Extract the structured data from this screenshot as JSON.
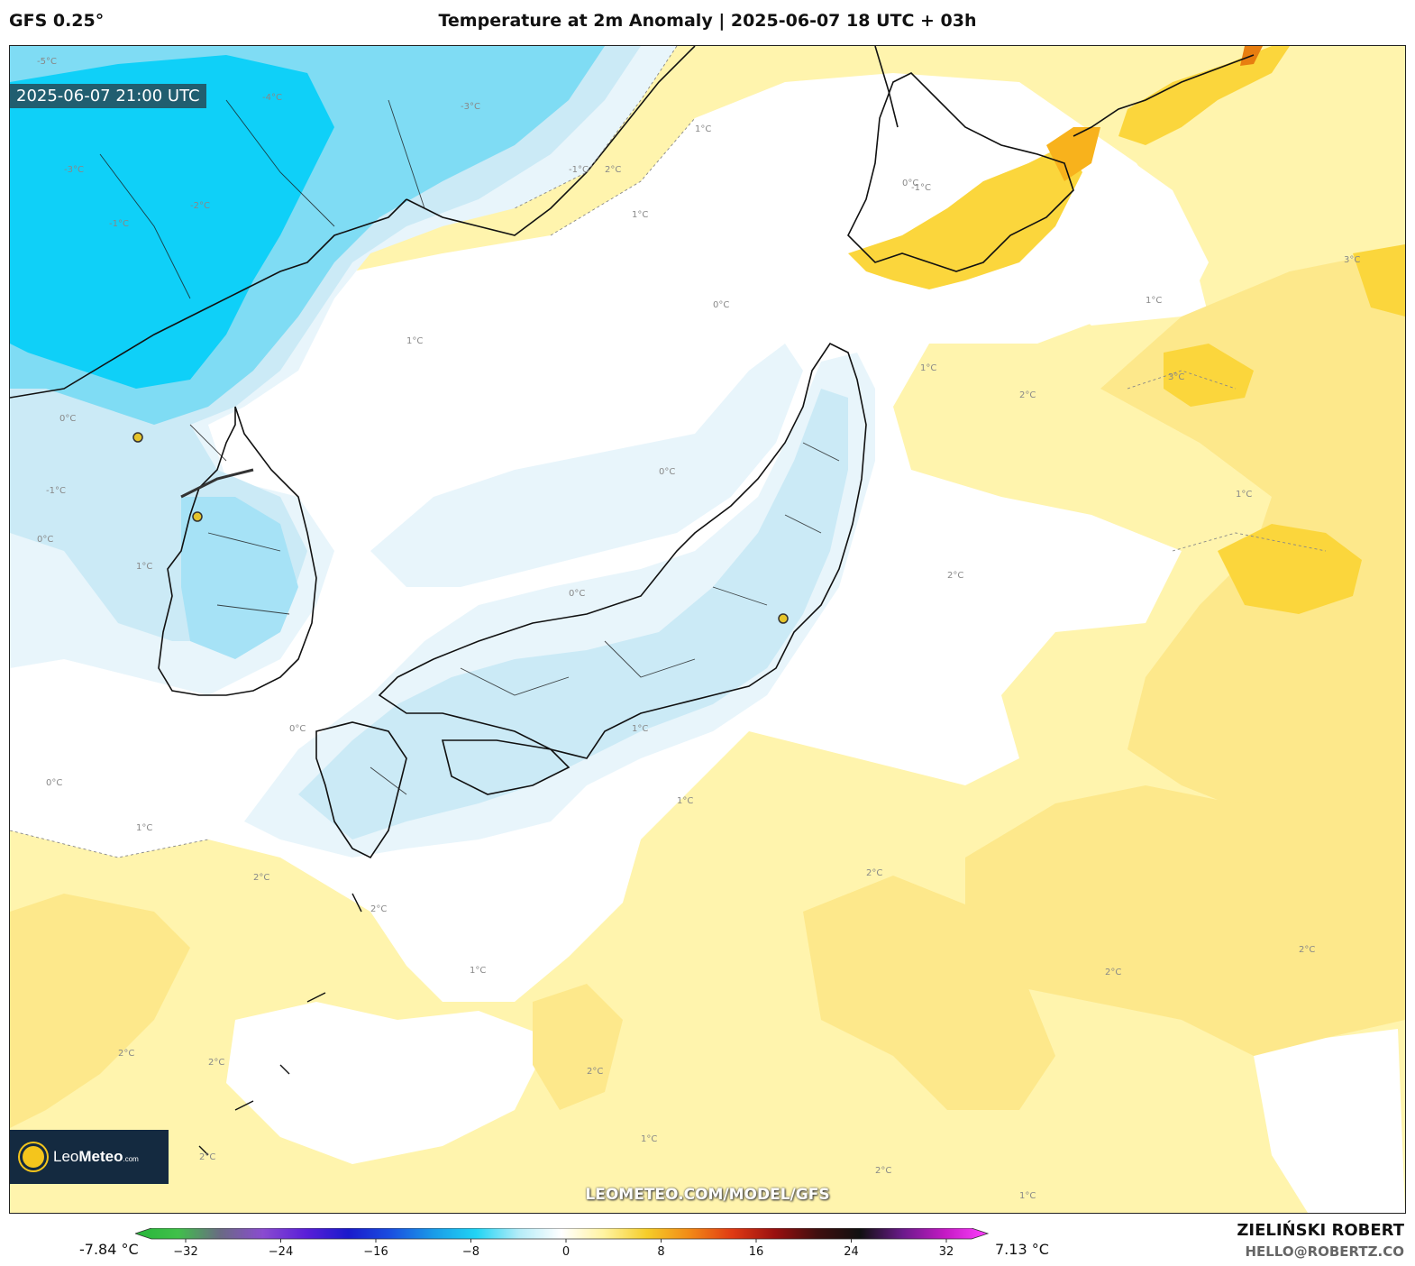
{
  "header": {
    "model": "GFS 0.25°",
    "title": "Temperature at 2m Anomaly | 2025-06-07 18 UTC + 03h"
  },
  "map": {
    "valid_time": "2025-06-07 21:00 UTC",
    "watermark": "LEOMETEO.COM/MODEL/GFS",
    "logo": {
      "prefix": "Leo",
      "brand": "Meteo",
      "suffix": ".com"
    },
    "contour_labels": [
      "-5°C",
      "-4°C",
      "-3°C",
      "-2°C",
      "-1°C",
      "0°C",
      "1°C",
      "2°C",
      "3°C"
    ],
    "colors": {
      "cold_strong": "#0fd0f8",
      "cold_mid": "#7fdcf4",
      "cold_light": "#cbeaf6",
      "cold_faint": "#e8f5fb",
      "neutral": "#ffffff",
      "warm_light": "#fff4ad",
      "warm_mid": "#fde88b",
      "warm_strong": "#fbd63c",
      "hot": "#f8b21c",
      "hotter": "#e77e10",
      "coast": "#111111",
      "border": "#1a1a1a"
    }
  },
  "colorbar": {
    "min_label": "-7.84 °C",
    "max_label": "7.13 °C",
    "ticks": [
      "−32",
      "−24",
      "−16",
      "−8",
      "0",
      "8",
      "16",
      "24",
      "32"
    ],
    "stops": [
      "#27b53a",
      "#40c04a",
      "#6a6a84",
      "#8a4bd0",
      "#5a1fd8",
      "#1a1acc",
      "#1a4fe0",
      "#1a9be8",
      "#20d4f4",
      "#b4ecf8",
      "#ffffff",
      "#fff3a0",
      "#f5cd2a",
      "#f28a16",
      "#e03a14",
      "#9a1010",
      "#401010",
      "#101010",
      "#6a1a8a",
      "#c41ac4",
      "#ff40ff"
    ]
  },
  "credit": {
    "author": "ZIELIŃSKI ROBERT",
    "email": "HELLO@ROBERTZ.CO"
  }
}
